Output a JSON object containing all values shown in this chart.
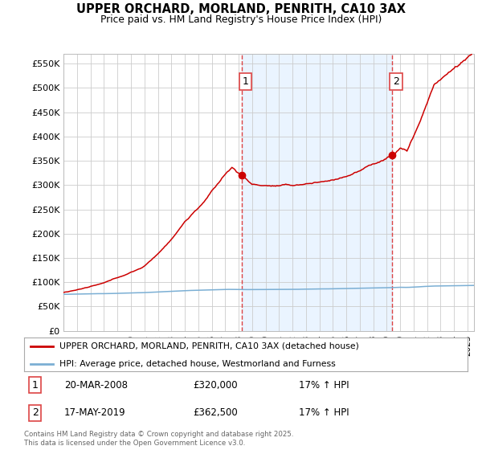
{
  "title": "UPPER ORCHARD, MORLAND, PENRITH, CA10 3AX",
  "subtitle": "Price paid vs. HM Land Registry's House Price Index (HPI)",
  "ylabel_ticks": [
    "£0",
    "£50K",
    "£100K",
    "£150K",
    "£200K",
    "£250K",
    "£300K",
    "£350K",
    "£400K",
    "£450K",
    "£500K",
    "£550K"
  ],
  "ytick_values": [
    0,
    50000,
    100000,
    150000,
    200000,
    250000,
    300000,
    350000,
    400000,
    450000,
    500000,
    550000
  ],
  "ylim": [
    0,
    570000
  ],
  "xlim_start": 1995.0,
  "xlim_end": 2025.5,
  "sale1_date": 2008.22,
  "sale1_price": 320000,
  "sale2_date": 2019.38,
  "sale2_price": 362500,
  "vline_color": "#dd4444",
  "red_line_color": "#cc0000",
  "blue_line_color": "#7bafd4",
  "shade_color": "#ddeeff",
  "legend_red": "UPPER ORCHARD, MORLAND, PENRITH, CA10 3AX (detached house)",
  "legend_blue": "HPI: Average price, detached house, Westmorland and Furness",
  "table_entries": [
    {
      "num": "1",
      "date": "20-MAR-2008",
      "price": "£320,000",
      "hpi": "17% ↑ HPI"
    },
    {
      "num": "2",
      "date": "17-MAY-2019",
      "price": "£362,500",
      "hpi": "17% ↑ HPI"
    }
  ],
  "footnote": "Contains HM Land Registry data © Crown copyright and database right 2025.\nThis data is licensed under the Open Government Licence v3.0.",
  "background_color": "#ffffff",
  "grid_color": "#cccccc"
}
